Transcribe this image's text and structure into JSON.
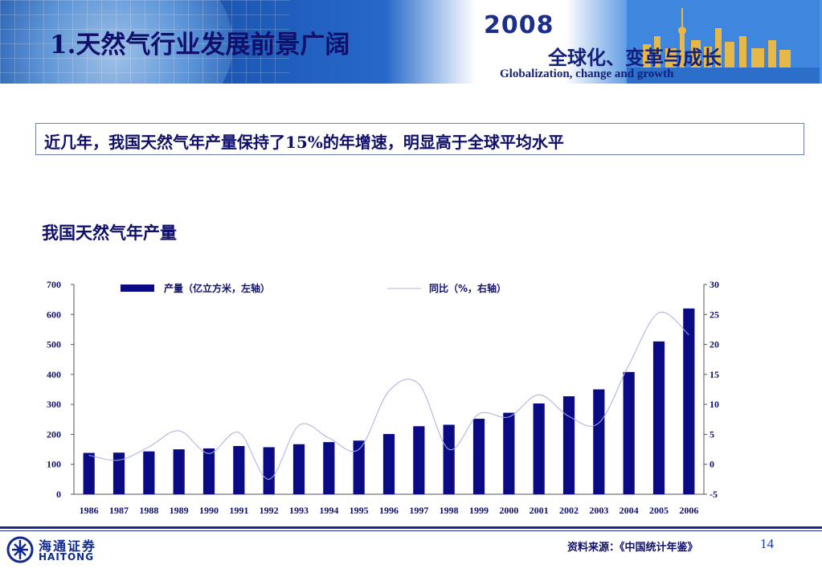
{
  "header": {
    "title": "1.天然气行业发展前景广阔",
    "year_logo": "2008",
    "slogan": "全球化、变革与成长",
    "slogan_en": "Globalization, change and growth"
  },
  "summary": "近几年，我国天然气年产量保持了15%的年增速，明显高于全球平均水平",
  "chart_title": "我国天然气年产量",
  "chart_data": {
    "type": "bar+line",
    "categories": [
      "1986",
      "1987",
      "1988",
      "1989",
      "1990",
      "1991",
      "1992",
      "1993",
      "1994",
      "1995",
      "1996",
      "1997",
      "1998",
      "1999",
      "2000",
      "2001",
      "2002",
      "2003",
      "2004",
      "2005",
      "2006"
    ],
    "series": [
      {
        "name": "产量（亿立方米，左轴）",
        "kind": "bar",
        "axis": "left",
        "color": "#0a0a85",
        "values": [
          138,
          139,
          143,
          150,
          153,
          161,
          157,
          167,
          174,
          179,
          201,
          227,
          232,
          252,
          272,
          303,
          327,
          350,
          408,
          510,
          620
        ]
      },
      {
        "name": "同比（%，右轴）",
        "kind": "line",
        "axis": "right",
        "color": "#a8b0e0",
        "values": [
          1.5,
          0.7,
          2.9,
          5.6,
          1.8,
          5.3,
          -2.5,
          6.5,
          4.4,
          2.5,
          12.2,
          13.4,
          2.5,
          8.4,
          7.9,
          11.6,
          8.0,
          6.9,
          16.6,
          25.3,
          21.6
        ]
      }
    ],
    "y_left": {
      "min": 0,
      "max": 700,
      "ticks": [
        "0",
        "100",
        "200",
        "300",
        "400",
        "500",
        "600",
        "700"
      ]
    },
    "y_right": {
      "min": -5,
      "max": 30,
      "ticks": [
        "-5",
        "0",
        "5",
        "10",
        "15",
        "20",
        "25",
        "30"
      ]
    },
    "legend": {
      "position": "top",
      "bar_label": "产量（亿立方米，左轴）",
      "line_label": "同比（%，右轴）"
    },
    "grid": false
  },
  "footer": {
    "logo_cn": "海通证券",
    "logo_en": "HAITONG",
    "source": "资料来源：《中国统计年鉴》",
    "page": "14"
  }
}
